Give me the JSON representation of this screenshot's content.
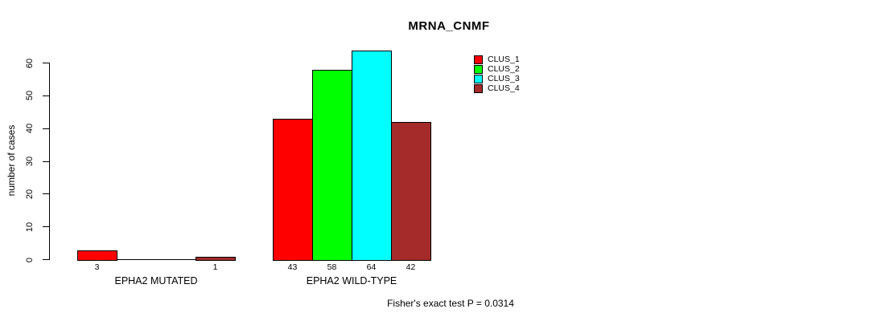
{
  "chart_data": {
    "type": "bar",
    "title": "MRNA_CNMF",
    "ylabel": "number of cases",
    "xlabel": "",
    "ylim": [
      0,
      60
    ],
    "yticks": [
      0,
      10,
      20,
      30,
      40,
      50,
      60
    ],
    "grid": false,
    "legend_position": "top-right",
    "categories": [
      "EPHA2 MUTATED",
      "EPHA2 WILD-TYPE"
    ],
    "series": [
      {
        "name": "CLUS_1",
        "color": "#FF0000",
        "values": [
          3,
          43
        ]
      },
      {
        "name": "CLUS_2",
        "color": "#00FF00",
        "values": [
          0,
          58
        ]
      },
      {
        "name": "CLUS_3",
        "color": "#00FFFF",
        "values": [
          0,
          64
        ]
      },
      {
        "name": "CLUS_4",
        "color": "#A52A2A",
        "values": [
          1,
          42
        ]
      }
    ],
    "groups": [
      {
        "label": "EPHA2 MUTATED",
        "values": [
          3,
          0,
          0,
          1
        ],
        "value_labels": [
          "3",
          "",
          "",
          "1"
        ]
      },
      {
        "label": "EPHA2 WILD-TYPE",
        "values": [
          43,
          58,
          64,
          42
        ],
        "value_labels": [
          "43",
          "58",
          "64",
          "42"
        ]
      }
    ],
    "annotation": "Fisher's exact test P = 0.0314"
  },
  "colors": {
    "background": "#FFFFFF",
    "axis": "#000000",
    "bar_outline": "#000000",
    "clus_1": "#FF0000",
    "clus_2": "#00FF00",
    "clus_3": "#00FFFF",
    "clus_4": "#A52A2A"
  }
}
